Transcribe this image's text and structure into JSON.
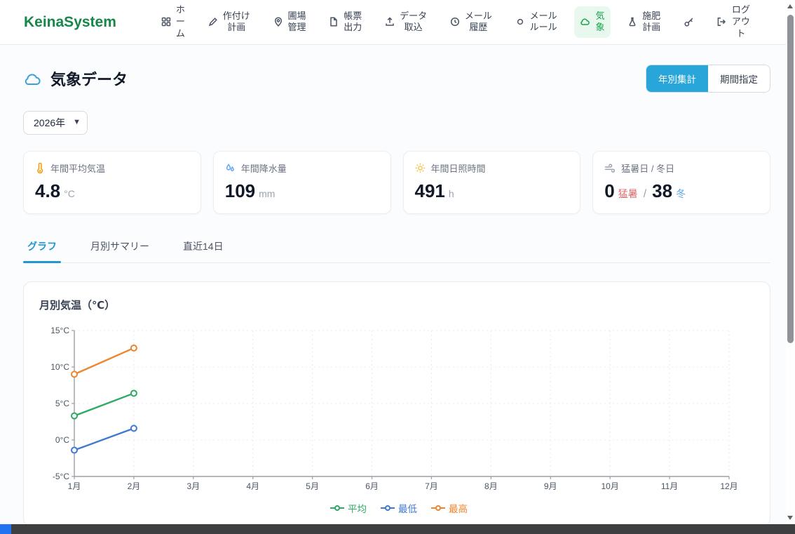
{
  "brand": "KeinaSystem",
  "nav": {
    "items": [
      {
        "label": "ホーム",
        "icon": "grid-icon"
      },
      {
        "label": "作付け計画",
        "icon": "pencil-icon"
      },
      {
        "label": "圃場管理",
        "icon": "map-pin-icon"
      },
      {
        "label": "帳票出力",
        "icon": "document-icon"
      },
      {
        "label": "データ取込",
        "icon": "upload-icon"
      },
      {
        "label": "メール履歴",
        "icon": "history-icon"
      },
      {
        "label": "メールルール",
        "icon": "circle-icon"
      },
      {
        "label": "気象",
        "icon": "cloud-icon",
        "active": true
      },
      {
        "label": "施肥計画",
        "icon": "flask-icon"
      },
      {
        "label": "ログアウト",
        "icon": "logout-icon"
      }
    ]
  },
  "page": {
    "title": "気象データ",
    "view_toggle": {
      "yearly": "年別集計",
      "period": "期間指定"
    },
    "year_select": "2026年"
  },
  "stats": {
    "cards": [
      {
        "icon": "thermometer-icon",
        "label": "年間平均気温",
        "value": "4.8",
        "unit": "°C"
      },
      {
        "icon": "droplet-icon",
        "label": "年間降水量",
        "value": "109",
        "unit": "mm"
      },
      {
        "icon": "sun-icon",
        "label": "年間日照時間",
        "value": "491",
        "unit": "h"
      },
      {
        "icon": "wind-icon",
        "label": "猛暑日 / 冬日",
        "value": "0",
        "value_label": "猛暑",
        "separator": "/",
        "value2": "38",
        "value2_label": "冬"
      }
    ]
  },
  "tabs": [
    {
      "label": "グラフ",
      "active": true
    },
    {
      "label": "月別サマリー",
      "active": false
    },
    {
      "label": "直近14日",
      "active": false
    }
  ],
  "chart_data": {
    "type": "line",
    "title": "月別気温（℃）",
    "categories": [
      "1月",
      "2月",
      "3月",
      "4月",
      "5月",
      "6月",
      "7月",
      "8月",
      "9月",
      "10月",
      "11月",
      "12月"
    ],
    "series": [
      {
        "name": "平均",
        "color": "#2dab66",
        "values": [
          3.3,
          6.4,
          null,
          null,
          null,
          null,
          null,
          null,
          null,
          null,
          null,
          null
        ]
      },
      {
        "name": "最低",
        "color": "#4079d0",
        "values": [
          -1.4,
          1.6,
          null,
          null,
          null,
          null,
          null,
          null,
          null,
          null,
          null,
          null
        ]
      },
      {
        "name": "最高",
        "color": "#ee8531",
        "values": [
          9.0,
          12.6,
          null,
          null,
          null,
          null,
          null,
          null,
          null,
          null,
          null,
          null
        ]
      }
    ],
    "ylim": [
      -5,
      15
    ],
    "ytick_step": 5,
    "ytick_suffix": "°C",
    "grid": true,
    "legend_position": "bottom"
  },
  "colors": {
    "brand_green": "#16874a",
    "nav_active_green": "#16a34a",
    "toggle_active_blue": "#28a6d9",
    "tab_active_blue": "#2196d4",
    "title_cloud_blue": "#3aa0d8",
    "hot_day_red": "#dd6b6b",
    "winter_day_blue": "#5aa7e8"
  }
}
